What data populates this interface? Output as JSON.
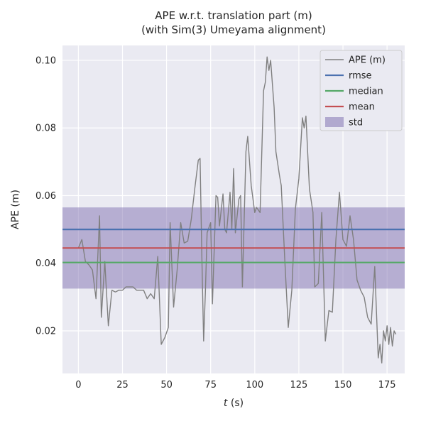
{
  "page": {
    "background": "#ffffff"
  },
  "chart_data": {
    "type": "line",
    "title": "APE w.r.t. translation part (m)",
    "subtitle": "(with Sim(3) Umeyama alignment)",
    "xlabel_var": "t",
    "xlabel_unit": " (s)",
    "ylabel": "APE (m)",
    "xlim": [
      -9,
      185
    ],
    "ylim": [
      0.0074,
      0.1044
    ],
    "xtick_values": [
      0,
      25,
      50,
      75,
      100,
      125,
      150,
      175
    ],
    "xtick_labels": [
      "0",
      "25",
      "50",
      "75",
      "100",
      "125",
      "150",
      "175"
    ],
    "ytick_values": [
      0.02,
      0.04,
      0.06,
      0.08,
      0.1
    ],
    "ytick_labels": [
      "0.02",
      "0.04",
      "0.06",
      "0.08",
      "0.10"
    ],
    "grid": true,
    "legend_position": "upper-right",
    "plot_bg": "#EAEAF2",
    "grid_color": "#FFFFFF",
    "colors": {
      "ape": "#808080",
      "rmse": "#4C72B0",
      "median": "#55A868",
      "mean": "#C44E52",
      "std": "#8172B2"
    },
    "stats": {
      "rmse": 0.05,
      "mean": 0.0445,
      "median": 0.0402,
      "std_lower": 0.0325,
      "std_upper": 0.0565
    },
    "series": [
      {
        "name": "APE (m)",
        "color": "#808080",
        "x": [
          0,
          2,
          4,
          6,
          8,
          10,
          12,
          13,
          15,
          17,
          19,
          21,
          23,
          25,
          27,
          29,
          31,
          33,
          35,
          37,
          39,
          41,
          43,
          45,
          47,
          49,
          51,
          52,
          54,
          56,
          58,
          60,
          62,
          64,
          66,
          68,
          69,
          70,
          71,
          72,
          73,
          75,
          76,
          78,
          79,
          80,
          82,
          83,
          84,
          86,
          87,
          88,
          89,
          91,
          92,
          93,
          95,
          96,
          98,
          100,
          101,
          103,
          105,
          106,
          107,
          108,
          109,
          111,
          112,
          114,
          115,
          117,
          119,
          121,
          123,
          125,
          127,
          128,
          129,
          131,
          133,
          134,
          136,
          138,
          140,
          142,
          144,
          146,
          148,
          150,
          152,
          154,
          156,
          158,
          160,
          162,
          164,
          166,
          168,
          170,
          171,
          172,
          173,
          174,
          175,
          176,
          177,
          178,
          179,
          180
        ],
        "y": [
          0.0445,
          0.047,
          0.0405,
          0.0395,
          0.038,
          0.0295,
          0.054,
          0.024,
          0.0405,
          0.0215,
          0.032,
          0.0315,
          0.032,
          0.032,
          0.033,
          0.033,
          0.033,
          0.032,
          0.032,
          0.032,
          0.0295,
          0.031,
          0.0295,
          0.042,
          0.016,
          0.018,
          0.021,
          0.052,
          0.027,
          0.038,
          0.052,
          0.046,
          0.0465,
          0.053,
          0.062,
          0.0705,
          0.071,
          0.042,
          0.017,
          0.031,
          0.049,
          0.052,
          0.028,
          0.06,
          0.0595,
          0.051,
          0.0605,
          0.05,
          0.049,
          0.061,
          0.05,
          0.068,
          0.049,
          0.059,
          0.06,
          0.033,
          0.073,
          0.0775,
          0.063,
          0.055,
          0.0565,
          0.055,
          0.091,
          0.0935,
          0.101,
          0.097,
          0.1,
          0.086,
          0.073,
          0.066,
          0.063,
          0.041,
          0.021,
          0.032,
          0.056,
          0.065,
          0.083,
          0.08,
          0.0835,
          0.062,
          0.055,
          0.033,
          0.034,
          0.055,
          0.017,
          0.026,
          0.0255,
          0.047,
          0.061,
          0.047,
          0.045,
          0.054,
          0.047,
          0.035,
          0.032,
          0.03,
          0.024,
          0.022,
          0.039,
          0.012,
          0.016,
          0.0105,
          0.02,
          0.017,
          0.0215,
          0.016,
          0.021,
          0.0155,
          0.02,
          0.019
        ]
      }
    ]
  },
  "legend": {
    "items": [
      {
        "label": "APE (m)"
      },
      {
        "label": "rmse"
      },
      {
        "label": "median"
      },
      {
        "label": "mean"
      },
      {
        "label": "std"
      }
    ]
  }
}
